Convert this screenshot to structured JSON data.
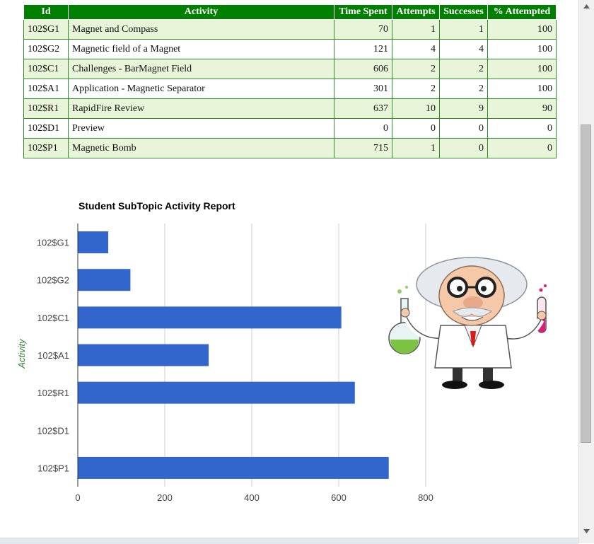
{
  "table": {
    "headers": [
      "Id",
      "Activity",
      "Time Spent",
      "Attempts",
      "Successes",
      "% Attempted"
    ],
    "rows": [
      {
        "id": "102$G1",
        "activity": "Magnet and Compass",
        "time": "70",
        "attempts": "1",
        "successes": "1",
        "pct": "100"
      },
      {
        "id": "102$G2",
        "activity": "Magnetic field of a Magnet",
        "time": "121",
        "attempts": "4",
        "successes": "4",
        "pct": "100"
      },
      {
        "id": "102$C1",
        "activity": "Challenges - BarMagnet Field",
        "time": "606",
        "attempts": "2",
        "successes": "2",
        "pct": "100"
      },
      {
        "id": "102$A1",
        "activity": "Application - Magnetic Separator",
        "time": "301",
        "attempts": "2",
        "successes": "2",
        "pct": "100"
      },
      {
        "id": "102$R1",
        "activity": "RapidFire Review",
        "time": "637",
        "attempts": "10",
        "successes": "9",
        "pct": "90"
      },
      {
        "id": "102$D1",
        "activity": "Preview",
        "time": "0",
        "attempts": "0",
        "successes": "0",
        "pct": "0"
      },
      {
        "id": "102$P1",
        "activity": "Magnetic Bomb",
        "time": "715",
        "attempts": "1",
        "successes": "0",
        "pct": "0"
      }
    ]
  },
  "chart_data": {
    "type": "bar",
    "orientation": "horizontal",
    "title": "Student SubTopic Activity Report",
    "ylabel": "Activity",
    "xlabel": "",
    "categories": [
      "102$G1",
      "102$G2",
      "102$C1",
      "102$A1",
      "102$R1",
      "102$D1",
      "102$P1"
    ],
    "values": [
      70,
      121,
      606,
      301,
      637,
      0,
      715
    ],
    "xlim": [
      0,
      1000
    ],
    "xticks": [
      "0",
      "200",
      "400",
      "600",
      "800"
    ],
    "grid": true,
    "legend": "none",
    "bar_color": "#3366cc"
  },
  "colors": {
    "header_bg": "#008000",
    "row_odd": "#e8f5d8",
    "row_even": "#ffffff",
    "border": "#2f8f2f"
  },
  "icons": {
    "scroll_up": "scroll-up-arrow-icon",
    "scroll_down": "scroll-down-arrow-icon",
    "illustration": "scientist-illustration"
  }
}
